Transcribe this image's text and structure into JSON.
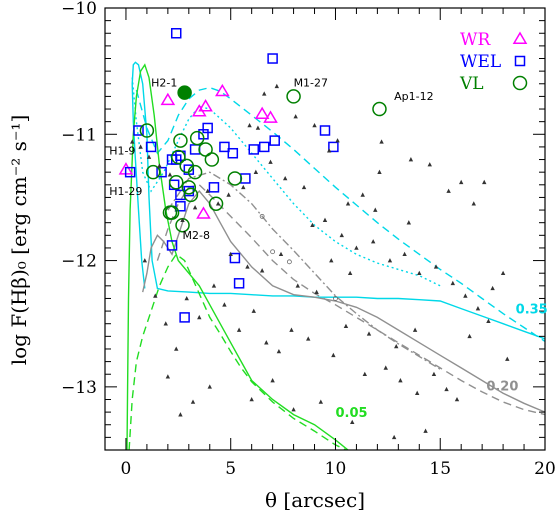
{
  "chart_data": {
    "type": "scatter",
    "xlabel": "θ  [arcsec]",
    "ylabel": "log F(Hβ)₀  [erg cm⁻² s⁻¹]",
    "xlim": [
      -1,
      20
    ],
    "ylim": [
      -13.5,
      -10
    ],
    "xticks": [
      "0",
      "5",
      "10",
      "15",
      "20"
    ],
    "yticks": [
      "−10",
      "−11",
      "−12",
      "−13"
    ],
    "legend_position": "top-right",
    "colors": {
      "WR": "#ff00ff",
      "WEL": "#0000ff",
      "VL": "#008000",
      "field": "#333333",
      "cyan": "#00d8e8",
      "gray": "#909090",
      "green": "#22dd22"
    },
    "legend": [
      {
        "label": "WR",
        "color": "#ff00ff",
        "marker": "triangle"
      },
      {
        "label": "WEL",
        "color": "#0000ff",
        "marker": "square"
      },
      {
        "label": "VL",
        "color": "#008000",
        "marker": "circle"
      }
    ],
    "curve_labels": [
      {
        "text": "0.35",
        "color": "#00d8e8",
        "x": 18.6,
        "y": -12.42
      },
      {
        "text": "0.20",
        "color": "#909090",
        "x": 17.2,
        "y": -13.03
      },
      {
        "text": "0.05",
        "color": "#22dd22",
        "x": 10.0,
        "y": -13.24
      }
    ],
    "object_labels": [
      {
        "text": "H2-1",
        "x": 1.2,
        "y": -10.62
      },
      {
        "text": "M1-27",
        "x": 8.0,
        "y": -10.62
      },
      {
        "text": "Ap1-12",
        "x": 12.8,
        "y": -10.73
      },
      {
        "text": "H1-9",
        "x": -0.8,
        "y": -11.16
      },
      {
        "text": "H1-29",
        "x": -0.8,
        "y": -11.48
      },
      {
        "text": "M2-8",
        "x": 2.7,
        "y": -11.83
      }
    ],
    "series": [
      {
        "name": "WR",
        "marker": "triangle",
        "x": [
          0,
          2.0,
          3.5,
          3.8,
          4.6,
          6.5,
          6.9,
          3.7
        ],
        "y": [
          -11.28,
          -10.73,
          -10.82,
          -10.78,
          -10.66,
          -10.84,
          -10.87,
          -11.63
        ]
      },
      {
        "name": "WEL",
        "marker": "square",
        "x": [
          2.4,
          7.0,
          3.9,
          0.6,
          2.2,
          2.6,
          3.7,
          3.3,
          4.7,
          5.1,
          6.1,
          6.6,
          7.1,
          9.5,
          9.9,
          2.4,
          1.7,
          2.3,
          2.6,
          3.0,
          4.2,
          5.7,
          2.6,
          0.2,
          2.8,
          2.2,
          5.4,
          5.2,
          3.0,
          1.2
        ],
        "y": [
          -10.2,
          -10.4,
          -10.95,
          -10.97,
          -11.2,
          -11.17,
          -11.0,
          -11.12,
          -11.1,
          -11.15,
          -11.12,
          -11.1,
          -11.05,
          -10.97,
          -11.1,
          -11.2,
          -11.3,
          -11.4,
          -11.48,
          -11.45,
          -11.42,
          -11.35,
          -11.57,
          -11.3,
          -12.45,
          -11.88,
          -12.18,
          -11.98,
          -11.28,
          -11.1
        ],
        "marker_size": 9
      },
      {
        "name": "VL",
        "marker": "circle",
        "filled": [
          true,
          false,
          false,
          false,
          false,
          false,
          false,
          false,
          false,
          false,
          false,
          false,
          false,
          false,
          false,
          false,
          false,
          false,
          false,
          false
        ],
        "x": [
          2.8,
          8.0,
          12.1,
          1.0,
          2.6,
          3.4,
          3.8,
          2.5,
          2.9,
          2.4,
          3.0,
          3.1,
          2.2,
          3.3,
          4.1,
          5.2,
          4.3,
          2.1,
          2.7,
          1.3
        ],
        "y": [
          -10.67,
          -10.7,
          -10.8,
          -10.97,
          -11.05,
          -11.03,
          -11.12,
          -11.18,
          -11.25,
          -11.38,
          -11.42,
          -11.48,
          -11.62,
          -11.3,
          -11.2,
          -11.35,
          -11.55,
          -11.62,
          -11.72,
          -11.3
        ]
      },
      {
        "name": "field",
        "marker": "small-triangle",
        "x": [
          6.6,
          7.2,
          5.9,
          6.3,
          8.1,
          9.0,
          10.1,
          9.7,
          12.2,
          13.6,
          14.5,
          15.4,
          16.0,
          17.1,
          16.6,
          12.1,
          11.3,
          10.6,
          8.5,
          7.6,
          6.9,
          6.2,
          5.6,
          4.9,
          4.4,
          3.9,
          3.3,
          2.7,
          2.1,
          1.6,
          1.1,
          0.7,
          0.3,
          8.9,
          9.5,
          10.3,
          11.0,
          11.8,
          12.6,
          13.3,
          14.0,
          14.8,
          15.6,
          16.2,
          16.8,
          17.5,
          18.0,
          13.8,
          12.9,
          11.6,
          10.5,
          9.9,
          8.7,
          7.9,
          7.3,
          6.7,
          6.1,
          5.4,
          4.7,
          4.2,
          3.5,
          2.9,
          2.4,
          1.9,
          1.4,
          0.9,
          5.0,
          5.8,
          6.5,
          7.4,
          8.2,
          9.1,
          9.8,
          10.7,
          11.4,
          12.4,
          13.1,
          13.9,
          14.7,
          15.3,
          16.4,
          17.3,
          18.2,
          4.0,
          3.2,
          2.6,
          2.0,
          6.0,
          7.0,
          8.0,
          9.3,
          10.8,
          12.8,
          14.3,
          15.8,
          11.9,
          13.5
        ],
        "y": [
          -10.68,
          -10.62,
          -10.93,
          -10.95,
          -10.86,
          -10.93,
          -11.05,
          -11.13,
          -11.06,
          -11.2,
          -11.24,
          -11.45,
          -11.38,
          -11.38,
          -11.55,
          -11.3,
          -11.48,
          -11.55,
          -11.42,
          -11.35,
          -11.22,
          -11.3,
          -11.42,
          -11.48,
          -11.55,
          -11.45,
          -11.58,
          -11.68,
          -11.32,
          -11.25,
          -11.18,
          -11.1,
          -11.06,
          -11.72,
          -11.68,
          -11.8,
          -11.9,
          -11.85,
          -12.0,
          -11.95,
          -12.1,
          -12.05,
          -12.18,
          -12.28,
          -12.38,
          -12.22,
          -12.1,
          -12.55,
          -12.68,
          -12.58,
          -12.52,
          -12.75,
          -12.62,
          -12.55,
          -12.72,
          -12.65,
          -12.4,
          -12.55,
          -12.35,
          -12.2,
          -12.45,
          -12.3,
          -12.7,
          -12.5,
          -12.28,
          -12.0,
          -11.95,
          -12.05,
          -12.08,
          -11.95,
          -12.2,
          -12.25,
          -12.0,
          -12.1,
          -12.9,
          -12.85,
          -12.95,
          -13.05,
          -12.9,
          -13.02,
          -12.6,
          -12.48,
          -12.78,
          -13.0,
          -13.12,
          -13.22,
          -12.92,
          -13.1,
          -12.95,
          -13.18,
          -13.12,
          -13.28,
          -13.4,
          -13.35,
          -13.1,
          -11.6,
          -11.7
        ]
      },
      {
        "name": "open-circle-grid",
        "marker": "small-circle",
        "x": [
          6.5,
          7.0,
          7.8,
          10.0
        ],
        "y": [
          -11.65,
          -11.93,
          -12.01,
          -12.3
        ]
      }
    ],
    "curves": [
      {
        "name": "cyan-solid",
        "color": "#00d8e8",
        "dash": "none",
        "x": [
          0.9,
          0.75,
          0.6,
          0.45,
          0.35,
          0.3,
          0.35,
          0.45,
          0.6,
          0.8,
          1.0,
          1.1,
          1.25,
          1.5,
          2,
          3,
          4,
          5,
          6,
          7,
          8,
          9,
          10,
          11,
          12,
          13,
          14,
          15,
          16,
          17,
          18,
          19,
          20
        ],
        "y": [
          -12.22,
          -12.0,
          -11.6,
          -11.2,
          -10.9,
          -10.6,
          -10.45,
          -10.43,
          -10.45,
          -10.6,
          -11.0,
          -11.5,
          -12.0,
          -12.22,
          -12.24,
          -12.25,
          -12.26,
          -12.26,
          -12.27,
          -12.28,
          -12.28,
          -12.29,
          -12.29,
          -12.29,
          -12.3,
          -12.3,
          -12.31,
          -12.32,
          -12.38,
          -12.44,
          -12.5,
          -12.56,
          -12.62
        ]
      },
      {
        "name": "cyan-dash",
        "color": "#00d8e8",
        "dash": "8,5",
        "x": [
          0.5,
          1,
          1.5,
          2,
          2.5,
          3,
          3.5,
          4,
          4.5,
          5,
          6,
          7,
          8,
          9,
          10,
          11,
          12,
          13,
          14,
          15,
          16,
          17,
          18,
          19,
          20
        ],
        "y": [
          -10.65,
          -10.95,
          -11.15,
          -11.05,
          -10.85,
          -10.72,
          -10.65,
          -10.63,
          -10.66,
          -10.72,
          -10.85,
          -10.98,
          -11.12,
          -11.27,
          -11.42,
          -11.56,
          -11.7,
          -11.83,
          -11.95,
          -12.07,
          -12.18,
          -12.3,
          -12.42,
          -12.53,
          -12.64
        ]
      },
      {
        "name": "cyan-dot",
        "color": "#00d8e8",
        "dash": "2,3",
        "x": [
          0.3,
          0.5,
          0.8,
          1.2,
          1.8,
          2.5,
          3,
          3.5,
          4,
          5,
          6,
          7,
          8,
          9,
          10,
          11,
          12,
          13,
          14,
          15
        ],
        "y": [
          -10.55,
          -10.9,
          -11.3,
          -11.45,
          -11.3,
          -11.05,
          -10.88,
          -10.78,
          -10.8,
          -10.95,
          -11.15,
          -11.35,
          -11.55,
          -11.72,
          -11.85,
          -11.95,
          -12.02,
          -12.07,
          -12.12,
          -12.2
        ]
      },
      {
        "name": "gray-solid",
        "color": "#909090",
        "dash": "none",
        "x": [
          0.8,
          1.0,
          1.2,
          1.5,
          1.8,
          2.2,
          2.6,
          3,
          3.5,
          4,
          4.5,
          5,
          6,
          7,
          8,
          9,
          10,
          11,
          12,
          13,
          14,
          15,
          16,
          17,
          18,
          19,
          20
        ],
        "y": [
          -12.25,
          -12.1,
          -11.9,
          -11.8,
          -11.85,
          -11.95,
          -11.75,
          -11.55,
          -11.45,
          -11.55,
          -11.7,
          -11.85,
          -12.05,
          -12.2,
          -12.27,
          -12.29,
          -12.32,
          -12.37,
          -12.45,
          -12.55,
          -12.65,
          -12.75,
          -12.85,
          -12.95,
          -13.05,
          -13.13,
          -13.2
        ]
      },
      {
        "name": "gray-dash",
        "color": "#909090",
        "dash": "8,5",
        "x": [
          1.5,
          2,
          2.5,
          3,
          3.5,
          4,
          5,
          6,
          7,
          8,
          9,
          10,
          11,
          12,
          13,
          14,
          15,
          16,
          17,
          18,
          19,
          20
        ],
        "y": [
          -12.0,
          -11.75,
          -11.55,
          -11.42,
          -11.4,
          -11.48,
          -11.65,
          -11.82,
          -12.0,
          -12.15,
          -12.26,
          -12.35,
          -12.45,
          -12.55,
          -12.65,
          -12.75,
          -12.85,
          -12.95,
          -13.04,
          -13.12,
          -13.18,
          -13.22
        ]
      },
      {
        "name": "gray-dashdot",
        "color": "#909090",
        "dash": "8,3,2,3",
        "x": [
          2,
          3,
          4,
          5,
          6,
          7,
          8,
          9,
          10,
          11,
          12,
          13,
          14,
          15
        ],
        "y": [
          -11.6,
          -11.35,
          -11.3,
          -11.4,
          -11.55,
          -11.75,
          -11.92,
          -12.1,
          -12.28,
          -12.42,
          -12.55,
          -12.66,
          -12.76,
          -12.86
        ]
      },
      {
        "name": "green-solid",
        "color": "#22dd22",
        "dash": "none",
        "x": [
          0.05,
          0.08,
          0.12,
          0.2,
          0.35,
          0.5,
          0.7,
          0.9,
          1.1,
          1.35,
          1.6,
          1.9,
          2.2,
          2.5,
          3,
          3.5,
          4,
          4.5,
          5,
          5.5,
          6,
          7,
          8,
          9,
          10,
          10.6
        ],
        "y": [
          -13.5,
          -13.0,
          -12.3,
          -11.6,
          -11.0,
          -10.7,
          -10.5,
          -10.45,
          -10.55,
          -10.85,
          -11.25,
          -11.6,
          -11.85,
          -12.0,
          -12.1,
          -12.2,
          -12.35,
          -12.5,
          -12.65,
          -12.8,
          -12.95,
          -13.1,
          -13.22,
          -13.3,
          -13.42,
          -13.5
        ]
      },
      {
        "name": "green-dash",
        "color": "#22dd22",
        "dash": "8,5",
        "x": [
          0.15,
          0.3,
          0.5,
          0.8,
          1.2,
          1.6,
          2,
          2.4,
          2.8,
          3.2,
          3.6,
          4,
          4.5,
          5,
          5.5,
          6,
          7,
          8,
          9,
          10,
          10.5
        ],
        "y": [
          -13.5,
          -13.1,
          -12.8,
          -12.6,
          -12.4,
          -12.2,
          -12.05,
          -11.95,
          -12.0,
          -12.15,
          -12.3,
          -12.45,
          -12.58,
          -12.72,
          -12.85,
          -12.96,
          -13.12,
          -13.25,
          -13.35,
          -13.46,
          -13.5
        ]
      }
    ]
  }
}
